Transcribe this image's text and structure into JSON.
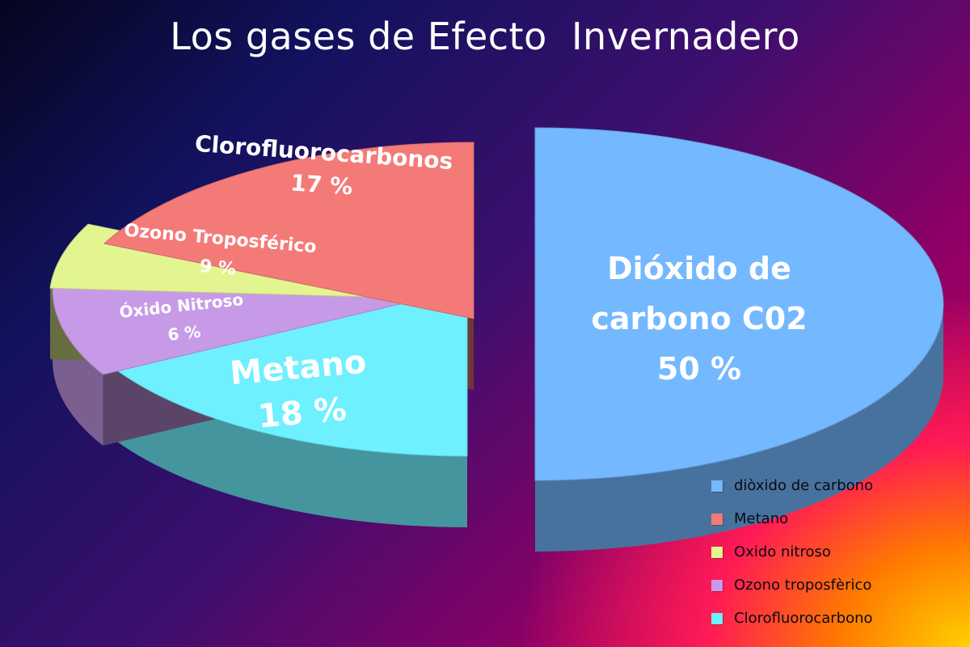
{
  "chart_data": {
    "type": "pie",
    "title": "Los gases de Efecto  Invernadero",
    "slices": [
      {
        "key": "co2",
        "label_lines": [
          "Dióxido de",
          "carbono  C02",
          "50 %"
        ],
        "value": 50,
        "color": "#74b8ff"
      },
      {
        "key": "cfc",
        "label_lines": [
          "Clorofluorocarbonos",
          "17 %"
        ],
        "value": 17,
        "color": "#6ef0ff"
      },
      {
        "key": "ozono",
        "label_lines": [
          "Ozono Troposférico",
          "9 %"
        ],
        "value": 9,
        "color": "#c79ae8"
      },
      {
        "key": "oxido",
        "label_lines": [
          "Óxido Nitroso",
          "6 %"
        ],
        "value": 6,
        "color": "#e2f590"
      },
      {
        "key": "metano",
        "label_lines": [
          "Metano",
          "18 %"
        ],
        "value": 18,
        "color": "#f47a78"
      }
    ],
    "legend": {
      "placement": "bottom-right",
      "entries": [
        {
          "label": "diòxido de carbono",
          "color": "#74b8ff"
        },
        {
          "label": "Metano",
          "color": "#f47a78"
        },
        {
          "label": "Oxido nitroso",
          "color": "#e2f590"
        },
        {
          "label": "Ozono troposfèrico",
          "color": "#c79ae8"
        },
        {
          "label": "Clorofluorocarbono",
          "color": "#6ef0ff"
        }
      ]
    }
  }
}
